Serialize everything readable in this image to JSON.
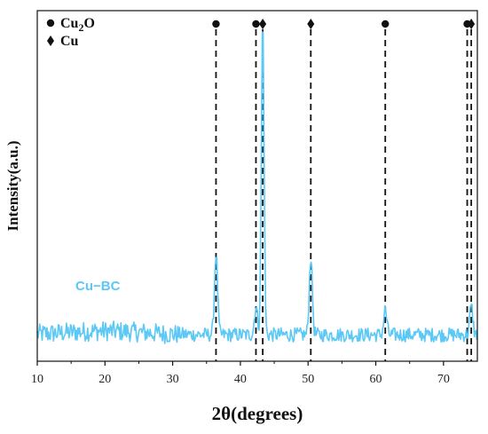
{
  "chart_data": {
    "type": "line",
    "xlabel": "2θ(degrees)",
    "ylabel": "Intensity(a.u.)",
    "xlim": [
      10,
      75
    ],
    "ylim": [
      0,
      1.0
    ],
    "xticks": [
      10,
      20,
      30,
      40,
      50,
      60,
      70
    ],
    "grid": false,
    "legend": {
      "placement": "top-left",
      "entries": [
        {
          "marker": "circle",
          "label_main": "Cu",
          "label_sub": "2",
          "label_end": "O"
        },
        {
          "marker": "diamond",
          "label_main": "Cu",
          "label_sub": "",
          "label_end": ""
        }
      ]
    },
    "series": [
      {
        "name": "Cu−BC",
        "color": "#5bc8f5",
        "baseline": 0.05,
        "noise_amplitude": 0.03,
        "peaks": [
          {
            "x": 36.4,
            "y": 0.26
          },
          {
            "x": 42.3,
            "y": 0.09
          },
          {
            "x": 43.3,
            "y": 1.0
          },
          {
            "x": 50.4,
            "y": 0.25
          },
          {
            "x": 61.4,
            "y": 0.08
          },
          {
            "x": 74.1,
            "y": 0.09
          }
        ]
      }
    ],
    "reference_lines": [
      {
        "x": 36.4,
        "phase": "Cu2O",
        "marker": "circle"
      },
      {
        "x": 42.3,
        "phase": "Cu2O",
        "marker": "circle"
      },
      {
        "x": 43.3,
        "phase": "Cu",
        "marker": "diamond"
      },
      {
        "x": 50.4,
        "phase": "Cu",
        "marker": "diamond"
      },
      {
        "x": 61.4,
        "phase": "Cu2O",
        "marker": "circle"
      },
      {
        "x": 73.5,
        "phase": "Cu2O",
        "marker": "circle"
      },
      {
        "x": 74.1,
        "phase": "Cu",
        "marker": "diamond"
      }
    ]
  }
}
